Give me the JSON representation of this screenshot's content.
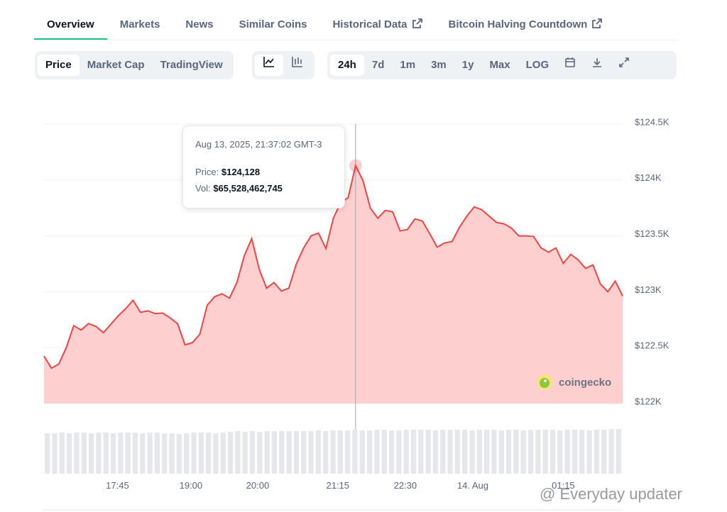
{
  "tabs": [
    "Overview",
    "Markets",
    "News",
    "Similar Coins",
    "Historical Data",
    "Bitcoin Halving Countdown"
  ],
  "toolbar": {
    "views": [
      "Price",
      "Market Cap",
      "TradingView"
    ],
    "ranges": [
      "24h",
      "7d",
      "1m",
      "3m",
      "1y",
      "Max",
      "LOG"
    ]
  },
  "chart_data": {
    "type": "area",
    "color": "#ef4444",
    "fill": "#fdd0cf",
    "values": [
      122424,
      122316,
      122354,
      122500,
      122696,
      122658,
      122715,
      122690,
      122633,
      122709,
      122785,
      122848,
      122924,
      122816,
      122829,
      122804,
      122810,
      122766,
      122715,
      122525,
      122544,
      122620,
      122880,
      122956,
      122981,
      122943,
      123082,
      123323,
      123475,
      123203,
      123032,
      123082,
      123006,
      123032,
      123247,
      123392,
      123500,
      123525,
      123386,
      123658,
      123797,
      123842,
      124128,
      123994,
      123747,
      123658,
      123728,
      123715,
      123544,
      123557,
      123652,
      123633,
      123519,
      123399,
      123437,
      123449,
      123576,
      123677,
      123759,
      123734,
      123677,
      123620,
      123608,
      123570,
      123500,
      123500,
      123494,
      123392,
      123354,
      123392,
      123253,
      123335,
      123285,
      123209,
      123240,
      123070,
      123000,
      123095,
      122962
    ],
    "volume": {
      "color": "#e5e7eb",
      "ylim": [
        0,
        70
      ],
      "values": [
        57,
        57,
        58,
        57,
        58,
        58,
        57,
        58,
        58,
        57,
        58,
        58,
        58,
        57,
        58,
        58,
        57,
        57,
        56,
        57,
        58,
        58,
        58,
        57,
        58,
        59,
        60,
        59,
        60,
        59,
        60,
        60,
        60,
        60,
        60,
        60,
        60,
        61,
        60,
        61,
        61,
        61,
        62,
        61,
        61,
        62,
        62,
        61,
        61,
        62,
        62,
        62,
        62,
        61,
        62,
        62,
        62,
        62,
        61,
        62,
        62,
        62,
        61,
        62,
        62,
        61,
        62,
        62,
        62,
        62,
        61,
        62,
        62,
        62,
        61,
        62,
        62,
        63,
        63
      ]
    },
    "xlim": [
      0,
      78
    ],
    "xticks": [
      {
        "value": 9.9,
        "label": "17:45"
      },
      {
        "value": 19.8,
        "label": "19:00"
      },
      {
        "value": 28.8,
        "label": "20:00"
      },
      {
        "value": 39.6,
        "label": "21:15"
      },
      {
        "value": 48.7,
        "label": "22:30"
      },
      {
        "value": 57.8,
        "label": "14. Aug"
      },
      {
        "value": 70,
        "label": "01:15"
      }
    ],
    "ylim": [
      122000,
      124500
    ],
    "yticks": [
      {
        "value": 122000,
        "label": "$122K"
      },
      {
        "value": 122500,
        "label": "$122.5K"
      },
      {
        "value": 123000,
        "label": "$123K"
      },
      {
        "value": 123500,
        "label": "$123.5K"
      },
      {
        "value": 124000,
        "label": "$124K"
      },
      {
        "value": 124500,
        "label": "$124.5K"
      }
    ],
    "grid": true,
    "highlight_index": 42
  },
  "tooltip": {
    "date": "Aug 13, 2025, 21:37:02 GMT-3",
    "price_label": "Price:",
    "price": "$124,128",
    "vol_label": "Vol:",
    "vol": "$65,528,462,745"
  },
  "watermark": "coingecko",
  "overlay": "@ Everyday updater"
}
